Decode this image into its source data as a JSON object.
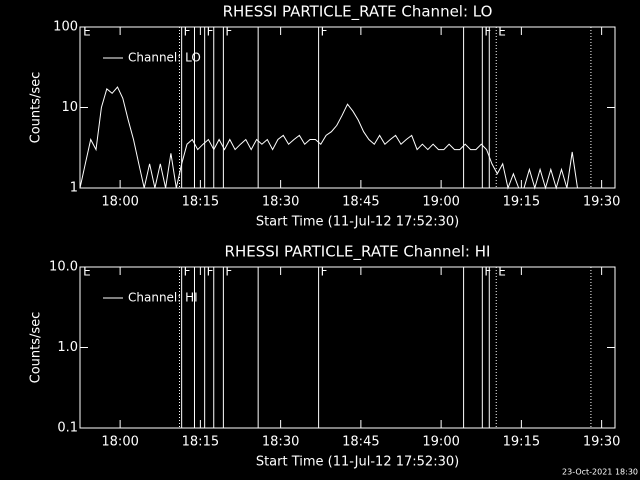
{
  "chart_data": [
    {
      "type": "line",
      "title": "RHESSI PARTICLE_RATE Channel: LO",
      "xlabel": "Start Time (11-Jul-12 17:52:30)",
      "ylabel": "Counts/sec",
      "log_y": true,
      "legend": "upper-left",
      "color": "#ffffff",
      "xlim": [
        0,
        100
      ],
      "ylim": [
        1,
        100
      ],
      "yticks": [
        1,
        10,
        100
      ],
      "xticks": [
        {
          "value": 7.5,
          "label": "18:00"
        },
        {
          "value": 22.5,
          "label": "18:15"
        },
        {
          "value": 37.5,
          "label": "18:30"
        },
        {
          "value": 52.5,
          "label": "18:45"
        },
        {
          "value": 67.5,
          "label": "19:00"
        },
        {
          "value": 82.5,
          "label": "19:15"
        },
        {
          "value": 97.5,
          "label": "19:30"
        }
      ],
      "x": [
        0,
        1,
        2,
        3,
        4,
        5,
        6,
        7,
        8,
        9,
        10,
        11,
        12,
        13,
        14,
        15,
        16,
        17,
        18,
        19,
        20,
        21,
        22,
        23,
        24,
        25,
        26,
        27,
        28,
        29,
        30,
        31,
        32,
        33,
        34,
        35,
        36,
        37,
        38,
        39,
        40,
        41,
        42,
        43,
        44,
        45,
        46,
        47,
        48,
        49,
        50,
        51,
        52,
        53,
        54,
        55,
        56,
        57,
        58,
        59,
        60,
        61,
        62,
        63,
        64,
        65,
        66,
        67,
        68,
        69,
        70,
        71,
        72,
        73,
        74,
        75,
        76,
        77,
        78,
        79,
        80,
        81,
        82,
        83,
        84,
        85,
        86,
        87,
        88,
        89,
        90,
        91,
        92,
        93,
        94
      ],
      "series": [
        {
          "name": "Channel: LO",
          "color": "#ffffff",
          "values": [
            1,
            2,
            4,
            3,
            10,
            17,
            15,
            18,
            13,
            7,
            4,
            2,
            1,
            2,
            1,
            2,
            1,
            2.7,
            1,
            2,
            3.5,
            4,
            3,
            3.5,
            4,
            3,
            4,
            3,
            4,
            3,
            3.5,
            4,
            3,
            4,
            3.5,
            4,
            3,
            4,
            4.5,
            3.5,
            4,
            4.5,
            3.5,
            4,
            4,
            3.5,
            4.5,
            5,
            6,
            8,
            11,
            9,
            7,
            5,
            4,
            3.5,
            4.5,
            3.5,
            4,
            4.5,
            3.5,
            4,
            4.5,
            3,
            3.5,
            3,
            3.5,
            3,
            3,
            3.5,
            3,
            3,
            3.5,
            3,
            3,
            3.5,
            3,
            2,
            1.5,
            2,
            1,
            1.5,
            1,
            1,
            1.7,
            1,
            1.7,
            1,
            1.7,
            1,
            1.7,
            1,
            2.8,
            1,
            1
          ]
        }
      ],
      "lines": [
        {
          "x": 18.6,
          "style": "dotted"
        },
        {
          "x": 19.0,
          "style": "solid"
        },
        {
          "x": 21.4,
          "style": "solid"
        },
        {
          "x": 23.3,
          "style": "solid"
        },
        {
          "x": 25.0,
          "style": "solid"
        },
        {
          "x": 26.8,
          "style": "solid"
        },
        {
          "x": 33.3,
          "style": "solid"
        },
        {
          "x": 44.6,
          "style": "solid"
        },
        {
          "x": 71.7,
          "style": "solid"
        },
        {
          "x": 75.2,
          "style": "solid"
        },
        {
          "x": 76.5,
          "style": "solid"
        },
        {
          "x": 77.8,
          "style": "dotted"
        },
        {
          "x": 95.5,
          "style": "dotted"
        }
      ],
      "flags": [
        {
          "x": 0.2,
          "label": "E"
        },
        {
          "x": 19.0,
          "label": "F"
        },
        {
          "x": 23.3,
          "label": "F"
        },
        {
          "x": 26.8,
          "label": "F"
        },
        {
          "x": 44.6,
          "label": "F"
        },
        {
          "x": 75.2,
          "label": "F"
        },
        {
          "x": 77.8,
          "label": "E"
        }
      ]
    },
    {
      "type": "line",
      "title": "RHESSI PARTICLE_RATE Channel: HI",
      "xlabel": "Start Time (11-Jul-12 17:52:30)",
      "ylabel": "Counts/sec",
      "log_y": true,
      "legend": "upper-left",
      "color": "#ffffff",
      "xlim": [
        0,
        100
      ],
      "ylim": [
        0.1,
        10
      ],
      "yticks": [
        {
          "value": 0.1,
          "label": "0.1"
        },
        {
          "value": 1,
          "label": "1.0"
        },
        {
          "value": 10,
          "label": "10.0"
        }
      ],
      "xticks": [
        {
          "value": 7.5,
          "label": "18:00"
        },
        {
          "value": 22.5,
          "label": "18:15"
        },
        {
          "value": 37.5,
          "label": "18:30"
        },
        {
          "value": 52.5,
          "label": "18:45"
        },
        {
          "value": 67.5,
          "label": "19:00"
        },
        {
          "value": 82.5,
          "label": "19:15"
        },
        {
          "value": 97.5,
          "label": "19:30"
        }
      ],
      "x": [],
      "series": [
        {
          "name": "Channel: HI",
          "color": "#ffffff",
          "values": []
        }
      ],
      "lines": [
        {
          "x": 18.6,
          "style": "dotted"
        },
        {
          "x": 19.0,
          "style": "solid"
        },
        {
          "x": 21.4,
          "style": "solid"
        },
        {
          "x": 23.3,
          "style": "solid"
        },
        {
          "x": 25.0,
          "style": "solid"
        },
        {
          "x": 26.8,
          "style": "solid"
        },
        {
          "x": 33.3,
          "style": "solid"
        },
        {
          "x": 44.6,
          "style": "solid"
        },
        {
          "x": 71.7,
          "style": "solid"
        },
        {
          "x": 75.2,
          "style": "solid"
        },
        {
          "x": 76.5,
          "style": "solid"
        },
        {
          "x": 77.8,
          "style": "dotted"
        },
        {
          "x": 95.5,
          "style": "dotted"
        }
      ],
      "flags": [
        {
          "x": 0.2,
          "label": "E"
        },
        {
          "x": 19.0,
          "label": "F"
        },
        {
          "x": 23.3,
          "label": "F"
        },
        {
          "x": 26.8,
          "label": "F"
        },
        {
          "x": 44.6,
          "label": "F"
        },
        {
          "x": 75.2,
          "label": "F"
        },
        {
          "x": 77.8,
          "label": "E"
        }
      ]
    }
  ],
  "footer": "23-Oct-2021 18:30"
}
